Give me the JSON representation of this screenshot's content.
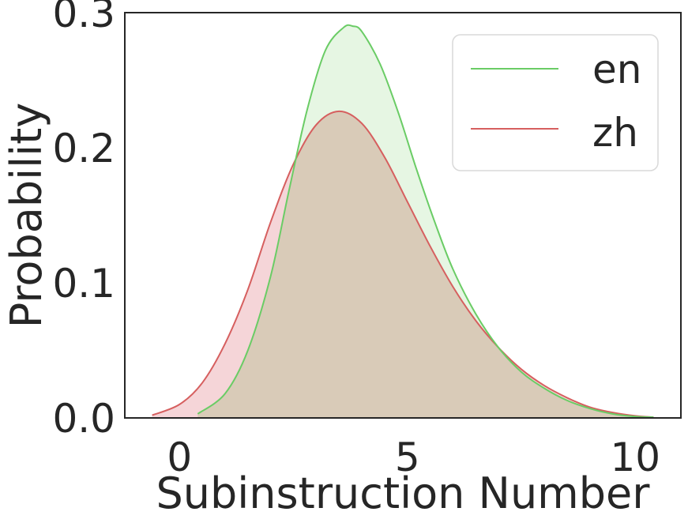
{
  "chart_data": {
    "type": "area",
    "title": "",
    "xlabel": "Subinstruction Number",
    "ylabel": "Probability",
    "xlim": [
      -1.2,
      11.0
    ],
    "ylim": [
      0.0,
      0.3
    ],
    "xticks": [
      0,
      5,
      10
    ],
    "xtick_labels": [
      "0",
      "5",
      "10"
    ],
    "yticks": [
      0.0,
      0.1,
      0.2,
      0.3
    ],
    "ytick_labels": [
      "0.0",
      "0.1",
      "0.2",
      "0.3"
    ],
    "grid": false,
    "legend_position": "top-right",
    "colors": {
      "en_line": "#6acc65",
      "en_fill": "#d7f0d2",
      "zh_line": "#d65f5f",
      "zh_fill": "#f5d5d8",
      "overlap_fill": "#d9cbb8",
      "axes": "#262626",
      "legend_border": "#d9d9d9"
    },
    "series": [
      {
        "name": "en",
        "x": [
          0.4,
          1.0,
          1.5,
          2.0,
          2.4,
          2.8,
          3.2,
          3.6,
          3.8,
          4.0,
          4.4,
          4.8,
          5.2,
          5.6,
          6.0,
          6.5,
          7.0,
          7.5,
          8.0,
          8.5,
          9.0,
          9.5,
          10.0,
          10.4
        ],
        "values": [
          0.003,
          0.018,
          0.05,
          0.105,
          0.168,
          0.228,
          0.272,
          0.289,
          0.29,
          0.286,
          0.262,
          0.226,
          0.184,
          0.145,
          0.11,
          0.077,
          0.052,
          0.034,
          0.022,
          0.013,
          0.007,
          0.003,
          0.001,
          0.0005
        ]
      },
      {
        "name": "zh",
        "x": [
          -0.6,
          0.0,
          0.5,
          1.0,
          1.5,
          2.0,
          2.5,
          3.0,
          3.5,
          4.0,
          4.5,
          5.0,
          5.5,
          6.0,
          6.5,
          7.0,
          7.5,
          8.0,
          8.5,
          9.0,
          9.5,
          10.0,
          10.4
        ],
        "values": [
          0.002,
          0.01,
          0.026,
          0.055,
          0.095,
          0.145,
          0.188,
          0.217,
          0.227,
          0.218,
          0.193,
          0.16,
          0.127,
          0.097,
          0.072,
          0.052,
          0.036,
          0.024,
          0.015,
          0.008,
          0.004,
          0.0015,
          0.0005
        ]
      }
    ]
  }
}
